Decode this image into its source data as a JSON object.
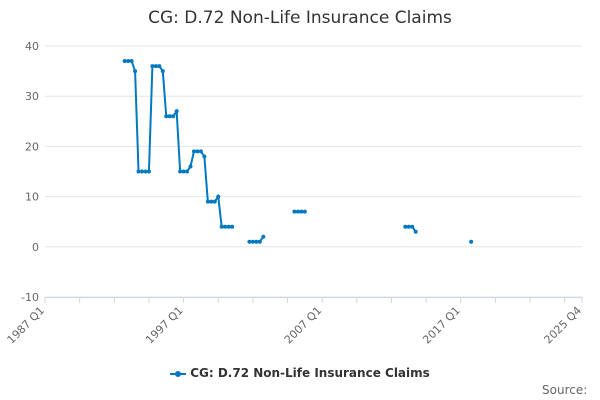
{
  "chart_data": {
    "type": "line",
    "title": "CG: D.72 Non-Life Insurance Claims",
    "xlabel": "",
    "ylabel": "",
    "ylim": [
      -10,
      40
    ],
    "yticks": [
      "-10",
      "0",
      "10",
      "20",
      "30",
      "40"
    ],
    "xrange": [
      "1987 Q1",
      "2025 Q4"
    ],
    "xticks": [
      "1987 Q1",
      "1997 Q1",
      "2007 Q1",
      "2017 Q1",
      "2025 Q4"
    ],
    "grid": true,
    "legend_position": "bottom",
    "series": [
      {
        "name": "CG: D.72 Non-Life Insurance Claims",
        "color": "#0079c1",
        "points": [
          [
            "1992 Q4",
            37
          ],
          [
            "1993 Q1",
            37
          ],
          [
            "1993 Q2",
            37
          ],
          [
            "1993 Q3",
            35
          ],
          [
            "1993 Q4",
            15
          ],
          [
            "1994 Q1",
            15
          ],
          [
            "1994 Q2",
            15
          ],
          [
            "1994 Q3",
            15
          ],
          [
            "1994 Q4",
            36
          ],
          [
            "1995 Q1",
            36
          ],
          [
            "1995 Q2",
            36
          ],
          [
            "1995 Q3",
            35
          ],
          [
            "1995 Q4",
            26
          ],
          [
            "1996 Q1",
            26
          ],
          [
            "1996 Q2",
            26
          ],
          [
            "1996 Q3",
            27
          ],
          [
            "1996 Q4",
            15
          ],
          [
            "1997 Q1",
            15
          ],
          [
            "1997 Q2",
            15
          ],
          [
            "1997 Q3",
            16
          ],
          [
            "1997 Q4",
            19
          ],
          [
            "1998 Q1",
            19
          ],
          [
            "1998 Q2",
            19
          ],
          [
            "1998 Q3",
            18
          ],
          [
            "1998 Q4",
            9
          ],
          [
            "1999 Q1",
            9
          ],
          [
            "1999 Q2",
            9
          ],
          [
            "1999 Q3",
            10
          ],
          [
            "1999 Q4",
            4
          ],
          [
            "2000 Q1",
            4
          ],
          [
            "2000 Q2",
            4
          ],
          [
            "2000 Q3",
            4
          ],
          [
            "2001 Q4",
            1
          ],
          [
            "2002 Q1",
            1
          ],
          [
            "2002 Q2",
            1
          ],
          [
            "2002 Q3",
            1
          ],
          [
            "2002 Q4",
            2
          ],
          [
            "2005 Q1",
            7
          ],
          [
            "2005 Q2",
            7
          ],
          [
            "2005 Q3",
            7
          ],
          [
            "2005 Q4",
            7
          ],
          [
            "2013 Q1",
            4
          ],
          [
            "2013 Q2",
            4
          ],
          [
            "2013 Q3",
            4
          ],
          [
            "2013 Q4",
            3
          ],
          [
            "2017 Q4",
            1
          ]
        ]
      }
    ]
  },
  "source_label": "Source:"
}
